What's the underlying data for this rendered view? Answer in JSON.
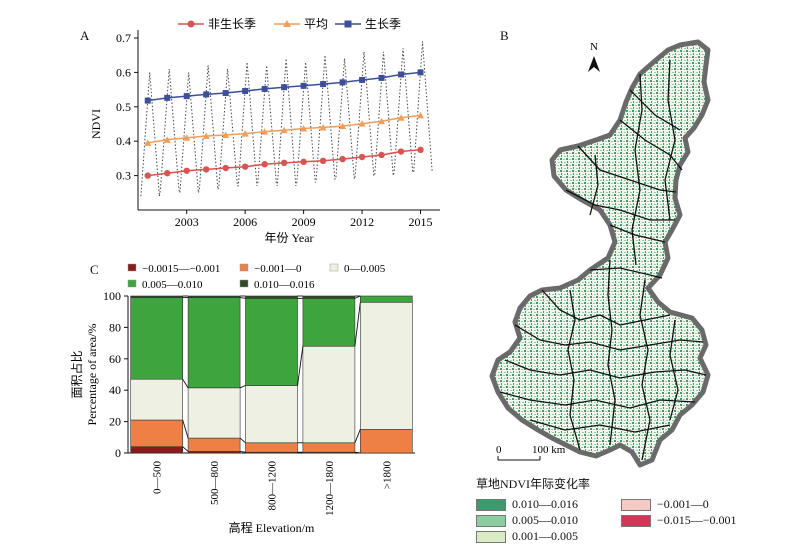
{
  "panels": {
    "a": "A",
    "b": "B",
    "c": "C"
  },
  "chart_data": [
    {
      "id": "A",
      "type": "line",
      "xlabel": "年份 Year",
      "ylabel": "NDVI",
      "ylim": [
        0.2,
        0.7
      ],
      "yticks": [
        0.3,
        0.4,
        0.5,
        0.6,
        0.7
      ],
      "xlim": [
        2000.5,
        2016.0
      ],
      "xticks": [
        2003,
        2006,
        2009,
        2012,
        2015
      ],
      "legend_position": "top",
      "series": [
        {
          "name": "非生长季",
          "color": "#d9534f",
          "marker": "circle",
          "x": [
            2001,
            2002,
            2003,
            2004,
            2005,
            2006,
            2007,
            2008,
            2009,
            2010,
            2011,
            2012,
            2013,
            2014,
            2015
          ],
          "values": [
            0.3,
            0.307,
            0.314,
            0.318,
            0.322,
            0.326,
            0.333,
            0.337,
            0.34,
            0.343,
            0.348,
            0.354,
            0.36,
            0.37,
            0.375
          ]
        },
        {
          "name": "平均",
          "color": "#f29d59",
          "marker": "triangle",
          "x": [
            2001,
            2002,
            2003,
            2004,
            2005,
            2006,
            2007,
            2008,
            2009,
            2010,
            2011,
            2012,
            2013,
            2014,
            2015
          ],
          "values": [
            0.395,
            0.404,
            0.41,
            0.415,
            0.418,
            0.422,
            0.428,
            0.432,
            0.437,
            0.44,
            0.444,
            0.451,
            0.458,
            0.468,
            0.475
          ]
        },
        {
          "name": "生长季",
          "color": "#3b4f9a",
          "marker": "square",
          "x": [
            2001,
            2002,
            2003,
            2004,
            2005,
            2006,
            2007,
            2008,
            2009,
            2010,
            2011,
            2012,
            2013,
            2014,
            2015
          ],
          "values": [
            0.518,
            0.526,
            0.531,
            0.536,
            0.54,
            0.546,
            0.552,
            0.557,
            0.561,
            0.566,
            0.571,
            0.578,
            0.584,
            0.594,
            0.6
          ]
        }
      ],
      "monthly_peaks": [
        0.6,
        0.61,
        0.6,
        0.62,
        0.61,
        0.63,
        0.62,
        0.64,
        0.63,
        0.65,
        0.64,
        0.66,
        0.66,
        0.67,
        0.69
      ],
      "monthly_troughs": [
        0.24,
        0.26,
        0.25,
        0.26,
        0.27,
        0.27,
        0.28,
        0.27,
        0.28,
        0.29,
        0.29,
        0.3,
        0.3,
        0.31,
        0.31
      ]
    },
    {
      "id": "C",
      "type": "bar",
      "stacked": true,
      "xlabel": "高程 Elevation/m",
      "ylabel": "Percentage of area/%",
      "ylabel_cn": "面积占比",
      "ylim": [
        0,
        100
      ],
      "yticks": [
        0,
        20,
        40,
        60,
        80,
        100
      ],
      "categories": [
        "0—500",
        "500—800",
        "800—1200",
        "1200—1800",
        ">1800"
      ],
      "legend_position": "top",
      "series": [
        {
          "name": "−0.0015—−0.001",
          "color": "#8b1a1a",
          "values": [
            4,
            1,
            0.5,
            0.5,
            0
          ]
        },
        {
          "name": "−0.001—0",
          "color": "#ee7f45",
          "values": [
            17,
            8.5,
            6,
            6,
            15
          ]
        },
        {
          "name": "0—0.005",
          "color": "#edf0e3",
          "values": [
            26,
            32,
            36.5,
            61.5,
            81
          ]
        },
        {
          "name": "0.005—0.010",
          "color": "#3ea43e",
          "values": [
            52,
            57.5,
            55.5,
            30.5,
            4
          ]
        },
        {
          "name": "0.010—0.016",
          "color": "#2f4a24",
          "values": [
            1,
            1,
            1.5,
            1.5,
            0
          ]
        }
      ]
    }
  ],
  "map": {
    "north_label": "N",
    "scale": {
      "zero": "0",
      "dist": "100 km"
    },
    "legend_title": "草地NDVI年际变化率",
    "legend_items": [
      {
        "label": "0.010—0.016",
        "color": "#3f9a6b"
      },
      {
        "label": "−0.001—0",
        "color": "#f6c9c4"
      },
      {
        "label": "0.005—0.010",
        "color": "#8ccda0"
      },
      {
        "label": "−0.015—−0.001",
        "color": "#d4365a"
      },
      {
        "label": "0.001—0.005",
        "color": "#d9ebc5"
      }
    ]
  }
}
